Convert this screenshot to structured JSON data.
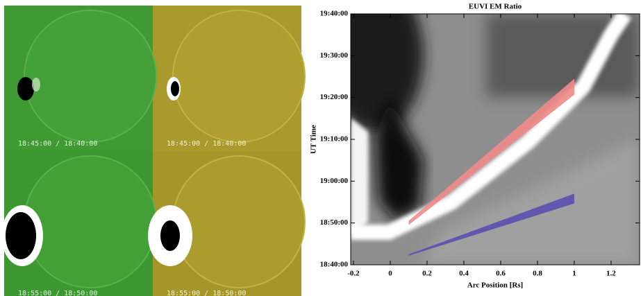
{
  "images": {
    "labels": [
      "18:45:00 / 18:40:00",
      "18:45:00 / 18:40:00",
      "18:55:00 / 18:50:00",
      "18:55:00 / 18:50:00"
    ]
  },
  "chart_data": {
    "type": "band",
    "title": "EUVI EM Ratio",
    "xlabel": "Arc Position [Rs]",
    "ylabel": "UT Time",
    "xlim": [
      -0.215,
      1.355
    ],
    "xticks": [
      -0.2,
      0.0,
      0.2,
      0.4,
      0.6,
      0.8,
      1.0,
      1.2
    ],
    "ylim": [
      "18:40:00",
      "19:40:00"
    ],
    "yticks": [
      "18:40:00",
      "18:50:00",
      "19:00:00",
      "19:10:00",
      "19:20:00",
      "19:30:00",
      "19:40:00"
    ],
    "series": [
      {
        "color": "#f08a8a",
        "x": [
          0.1,
          1.0
        ],
        "lower": [
          "18:49:30",
          "19:20:40"
        ],
        "upper": [
          "18:50:30",
          "19:24:30"
        ]
      },
      {
        "color": "#5b4fb0",
        "x": [
          0.1,
          1.0
        ],
        "lower": [
          "18:42:10",
          "18:54:40"
        ],
        "upper": [
          "18:42:30",
          "18:57:00"
        ]
      }
    ]
  }
}
